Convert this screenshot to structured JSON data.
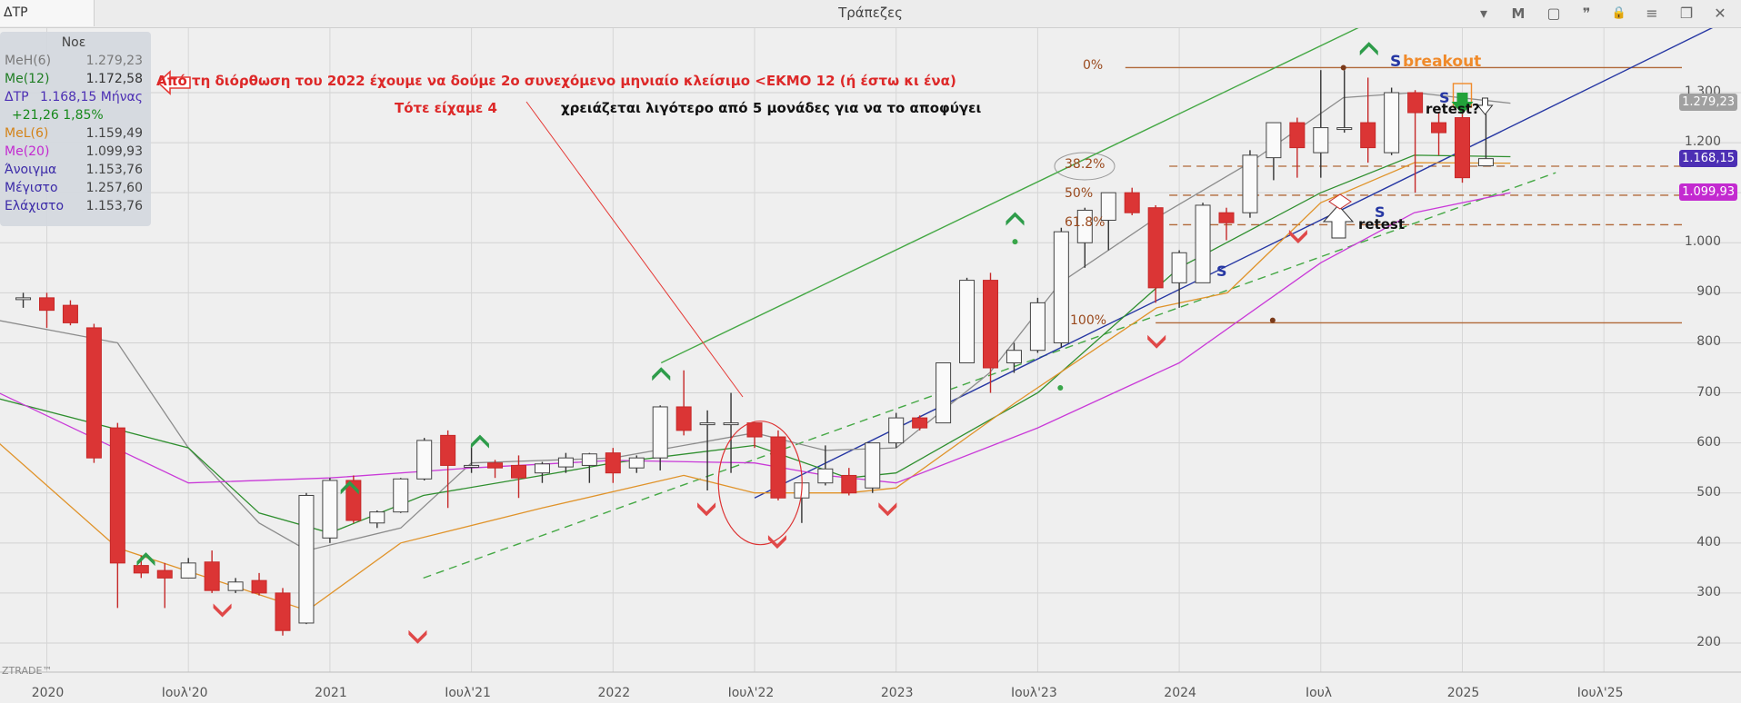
{
  "window": {
    "symbol": "ΔΤΡ",
    "title": "Τράπεζες",
    "buttons": [
      "▾",
      "M",
      "▢",
      "❞",
      "🔒",
      "≡",
      "❐",
      "✕"
    ]
  },
  "info_panel": {
    "title": "Νοε",
    "rows": [
      {
        "label": "MeH(6)",
        "value": "1.279,23",
        "color": "#7a7a7a"
      },
      {
        "label": "Me(12)",
        "value": "1.172,58",
        "color": "#1e7d22"
      },
      {
        "label": "ΔΤΡ",
        "value": "1.168,15 Μήνας",
        "color": "#4c2fb4"
      },
      {
        "label": "+21,26 1,85%",
        "value": "",
        "color": "#17891b"
      },
      {
        "label": "MeL(6)",
        "value": "1.159,49",
        "color": "#d48318"
      },
      {
        "label": "Me(20)",
        "value": "1.099,93",
        "color": "#c32ad0"
      },
      {
        "label": "Άνοιγμα",
        "value": "1.153,76",
        "color": "#3b2aa8"
      },
      {
        "label": "Μέγιστο",
        "value": "1.257,60",
        "color": "#3b2aa8"
      },
      {
        "label": "Ελάχιστο",
        "value": "1.153,76",
        "color": "#3b2aa8"
      }
    ]
  },
  "annotations": {
    "line1": "Από τη διόρθωση του 2022 έχουμε να δούμε 2ο συνεχόμενο μηνιαίο κλείσιμο <ΕΚΜΟ  12 (ή έστω κι ένα)",
    "line2": "Τότε είχαμε 4",
    "line3": "χρειάζεται λιγότερο από 5 μονάδες για να το αποφύγει",
    "s": "S",
    "breakout": "breakout",
    "retest1": "retest?",
    "retest2": "retest"
  },
  "fib_levels": [
    {
      "label": "0%",
      "value": 1350
    },
    {
      "label": "38.2%",
      "value": 1153
    },
    {
      "label": "50%",
      "value": 1095
    },
    {
      "label": "61.8%",
      "value": 1036
    },
    {
      "label": "100%",
      "value": 840
    }
  ],
  "price_tags": [
    {
      "text": "1.279,23",
      "value": 1279.23,
      "color": "#a0a0a0"
    },
    {
      "text": "1.168,15",
      "value": 1168.15,
      "color": "#4c2fb4"
    },
    {
      "text": "1.099,93",
      "value": 1099.93,
      "color": "#c32ad0"
    }
  ],
  "watermark": "ZTRADE™",
  "chart_data": {
    "type": "candlestick",
    "title": "",
    "xlabel": "",
    "ylabel": "",
    "y_ticks": [
      200,
      300,
      400,
      500,
      600,
      700,
      800,
      900,
      1000,
      1100,
      1200,
      1300
    ],
    "y_tick_labels": [
      "200",
      "300",
      "400",
      "500",
      "600",
      "700",
      "800",
      "900",
      "1.000",
      "1.100",
      "1.200",
      "1.300"
    ],
    "x_ticks": [
      "2020",
      "Ιουλ'20",
      "2021",
      "Ιουλ'21",
      "2022",
      "Ιουλ'22",
      "2023",
      "Ιουλ'23",
      "2024",
      "Ιουλ",
      "2025",
      "Ιουλ'25"
    ],
    "x_tick_months": [
      "2020-01",
      "2020-07",
      "2021-01",
      "2021-07",
      "2022-01",
      "2022-07",
      "2023-01",
      "2023-07",
      "2024-01",
      "2024-07",
      "2025-01",
      "2025-07"
    ],
    "ylim": [
      165,
      1410
    ],
    "grid": true,
    "candles": [
      {
        "month": "2019-12",
        "open": 890,
        "high": 900,
        "low": 870,
        "close": 890
      },
      {
        "month": "2020-01",
        "open": 890,
        "high": 900,
        "low": 830,
        "close": 865
      },
      {
        "month": "2020-02",
        "open": 875,
        "high": 885,
        "low": 835,
        "close": 840
      },
      {
        "month": "2020-03",
        "open": 830,
        "high": 838,
        "low": 560,
        "close": 570
      },
      {
        "month": "2020-04",
        "open": 630,
        "high": 640,
        "low": 270,
        "close": 360
      },
      {
        "month": "2020-05",
        "open": 355,
        "high": 375,
        "low": 330,
        "close": 340
      },
      {
        "month": "2020-06",
        "open": 345,
        "high": 360,
        "low": 270,
        "close": 330
      },
      {
        "month": "2020-07",
        "open": 330,
        "high": 370,
        "low": 330,
        "close": 360
      },
      {
        "month": "2020-08",
        "open": 362,
        "high": 385,
        "low": 300,
        "close": 305
      },
      {
        "month": "2020-09",
        "open": 305,
        "high": 330,
        "low": 300,
        "close": 322
      },
      {
        "month": "2020-10",
        "open": 325,
        "high": 340,
        "low": 295,
        "close": 300
      },
      {
        "month": "2020-11",
        "open": 300,
        "high": 310,
        "low": 215,
        "close": 225
      },
      {
        "month": "2020-12",
        "open": 240,
        "high": 500,
        "low": 238,
        "close": 495
      },
      {
        "month": "2021-01",
        "open": 410,
        "high": 530,
        "low": 400,
        "close": 525
      },
      {
        "month": "2021-02",
        "open": 525,
        "high": 535,
        "low": 440,
        "close": 445
      },
      {
        "month": "2021-03",
        "open": 440,
        "high": 465,
        "low": 430,
        "close": 462
      },
      {
        "month": "2021-04",
        "open": 462,
        "high": 530,
        "low": 460,
        "close": 528
      },
      {
        "month": "2021-05",
        "open": 528,
        "high": 610,
        "low": 525,
        "close": 605
      },
      {
        "month": "2021-06",
        "open": 615,
        "high": 625,
        "low": 470,
        "close": 555
      },
      {
        "month": "2021-07",
        "open": 553,
        "high": 595,
        "low": 540,
        "close": 555
      },
      {
        "month": "2021-08",
        "open": 560,
        "high": 566,
        "low": 530,
        "close": 550
      },
      {
        "month": "2021-09",
        "open": 555,
        "high": 575,
        "low": 490,
        "close": 530
      },
      {
        "month": "2021-10",
        "open": 540,
        "high": 562,
        "low": 520,
        "close": 558
      },
      {
        "month": "2021-11",
        "open": 552,
        "high": 580,
        "low": 540,
        "close": 570
      },
      {
        "month": "2021-12",
        "open": 555,
        "high": 580,
        "low": 520,
        "close": 578
      },
      {
        "month": "2022-01",
        "open": 580,
        "high": 590,
        "low": 520,
        "close": 540
      },
      {
        "month": "2022-02",
        "open": 550,
        "high": 575,
        "low": 540,
        "close": 570
      },
      {
        "month": "2022-03",
        "open": 570,
        "high": 675,
        "low": 545,
        "close": 672
      },
      {
        "month": "2022-04",
        "open": 672,
        "high": 745,
        "low": 615,
        "close": 625
      },
      {
        "month": "2022-05",
        "open": 640,
        "high": 665,
        "low": 505,
        "close": 640
      },
      {
        "month": "2022-06",
        "open": 640,
        "high": 700,
        "low": 540,
        "close": 640
      },
      {
        "month": "2022-07",
        "open": 640,
        "high": 640,
        "low": 590,
        "close": 612
      },
      {
        "month": "2022-08",
        "open": 612,
        "high": 625,
        "low": 485,
        "close": 490
      },
      {
        "month": "2022-09",
        "open": 490,
        "high": 520,
        "low": 440,
        "close": 520
      },
      {
        "month": "2022-10",
        "open": 520,
        "high": 595,
        "low": 515,
        "close": 548
      },
      {
        "month": "2022-11",
        "open": 535,
        "high": 550,
        "low": 495,
        "close": 500
      },
      {
        "month": "2022-12",
        "open": 510,
        "high": 600,
        "low": 500,
        "close": 600
      },
      {
        "month": "2023-01",
        "open": 600,
        "high": 660,
        "low": 590,
        "close": 650
      },
      {
        "month": "2023-02",
        "open": 650,
        "high": 655,
        "low": 625,
        "close": 630
      },
      {
        "month": "2023-03",
        "open": 640,
        "high": 760,
        "low": 640,
        "close": 760
      },
      {
        "month": "2023-04",
        "open": 760,
        "high": 930,
        "low": 760,
        "close": 925
      },
      {
        "month": "2023-05",
        "open": 925,
        "high": 940,
        "low": 700,
        "close": 750
      },
      {
        "month": "2023-06",
        "open": 760,
        "high": 800,
        "low": 740,
        "close": 785
      },
      {
        "month": "2023-07",
        "open": 785,
        "high": 890,
        "low": 780,
        "close": 880
      },
      {
        "month": "2023-08",
        "open": 800,
        "high": 1030,
        "low": 790,
        "close": 1022
      },
      {
        "month": "2023-09",
        "open": 1000,
        "high": 1070,
        "low": 950,
        "close": 1065
      },
      {
        "month": "2023-10",
        "open": 1045,
        "high": 1100,
        "low": 985,
        "close": 1100
      },
      {
        "month": "2023-11",
        "open": 1100,
        "high": 1110,
        "low": 1055,
        "close": 1060
      },
      {
        "month": "2023-12",
        "open": 1070,
        "high": 1075,
        "low": 880,
        "close": 910
      },
      {
        "month": "2024-01",
        "open": 920,
        "high": 985,
        "low": 870,
        "close": 980
      },
      {
        "month": "2024-02",
        "open": 920,
        "high": 1080,
        "low": 920,
        "close": 1075
      },
      {
        "month": "2024-03",
        "open": 1060,
        "high": 1070,
        "low": 1005,
        "close": 1040
      },
      {
        "month": "2024-04",
        "open": 1060,
        "high": 1185,
        "low": 1050,
        "close": 1175
      },
      {
        "month": "2024-05",
        "open": 1170,
        "high": 1240,
        "low": 1125,
        "close": 1240
      },
      {
        "month": "2024-06",
        "open": 1240,
        "high": 1250,
        "low": 1130,
        "close": 1190
      },
      {
        "month": "2024-07",
        "open": 1180,
        "high": 1345,
        "low": 1130,
        "close": 1230
      },
      {
        "month": "2024-08",
        "open": 1230,
        "high": 1345,
        "low": 1220,
        "close": 1230
      },
      {
        "month": "2024-09",
        "open": 1240,
        "high": 1330,
        "low": 1160,
        "close": 1190
      },
      {
        "month": "2024-10",
        "open": 1180,
        "high": 1310,
        "low": 1175,
        "close": 1300
      },
      {
        "month": "2024-11",
        "open": 1300,
        "high": 1305,
        "low": 1100,
        "close": 1260
      },
      {
        "month": "2024-12",
        "open": 1240,
        "high": 1260,
        "low": 1175,
        "close": 1220
      },
      {
        "month": "2025-01",
        "open": 1250,
        "high": 1260,
        "low": 1120,
        "close": 1130
      },
      {
        "month": "2025-02",
        "open": 1153.76,
        "high": 1257.6,
        "low": 1153.76,
        "close": 1168.15
      }
    ],
    "series": [
      {
        "name": "MeH(6)",
        "color": "#8c8c8c",
        "values": [
          [
            2019.0,
            895
          ],
          [
            2019.5,
            880
          ],
          [
            2020.25,
            800
          ],
          [
            2020.5,
            590
          ],
          [
            2020.75,
            440
          ],
          [
            2020.92,
            385
          ],
          [
            2021.25,
            430
          ],
          [
            2021.5,
            560
          ],
          [
            2022.0,
            570
          ],
          [
            2022.5,
            620
          ],
          [
            2022.75,
            585
          ],
          [
            2023.0,
            590
          ],
          [
            2023.33,
            740
          ],
          [
            2023.58,
            920
          ],
          [
            2023.92,
            1050
          ],
          [
            2024.25,
            1160
          ],
          [
            2024.58,
            1290
          ],
          [
            2024.83,
            1300
          ],
          [
            2025.17,
            1279
          ]
        ]
      },
      {
        "name": "Me(12)",
        "color": "#2f8f2f",
        "values": [
          [
            2019.0,
            820
          ],
          [
            2019.25,
            805
          ],
          [
            2019.75,
            700
          ],
          [
            2020.5,
            590
          ],
          [
            2020.75,
            460
          ],
          [
            2021.0,
            420
          ],
          [
            2021.33,
            495
          ],
          [
            2021.75,
            535
          ],
          [
            2022.0,
            560
          ],
          [
            2022.5,
            595
          ],
          [
            2022.83,
            530
          ],
          [
            2023.0,
            540
          ],
          [
            2023.5,
            700
          ],
          [
            2024.0,
            950
          ],
          [
            2024.5,
            1100
          ],
          [
            2024.83,
            1175
          ],
          [
            2025.17,
            1172
          ]
        ]
      },
      {
        "name": "MeL(6)",
        "color": "#e0932a",
        "values": [
          [
            2019.0,
            750
          ],
          [
            2019.25,
            790
          ],
          [
            2019.75,
            640
          ],
          [
            2020.25,
            390
          ],
          [
            2020.92,
            265
          ],
          [
            2021.25,
            400
          ],
          [
            2021.75,
            470
          ],
          [
            2022.25,
            535
          ],
          [
            2022.5,
            500
          ],
          [
            2022.83,
            500
          ],
          [
            2023.0,
            510
          ],
          [
            2023.42,
            680
          ],
          [
            2023.92,
            870
          ],
          [
            2024.17,
            900
          ],
          [
            2024.5,
            1080
          ],
          [
            2024.83,
            1160
          ],
          [
            2025.17,
            1159
          ]
        ]
      },
      {
        "name": "Me(20)",
        "color": "#c93ad8",
        "values": [
          [
            2019.0,
            895
          ],
          [
            2019.33,
            880
          ],
          [
            2019.83,
            700
          ],
          [
            2020.5,
            520
          ],
          [
            2021.0,
            530
          ],
          [
            2021.5,
            550
          ],
          [
            2022.0,
            565
          ],
          [
            2022.5,
            560
          ],
          [
            2022.75,
            535
          ],
          [
            2023.0,
            520
          ],
          [
            2023.5,
            630
          ],
          [
            2024.0,
            760
          ],
          [
            2024.5,
            960
          ],
          [
            2024.83,
            1060
          ],
          [
            2025.17,
            1100
          ]
        ]
      }
    ],
    "trendlines": [
      {
        "from": [
          2022.17,
          760
        ],
        "to": [
          2024.67,
          1440
        ],
        "style": "solid",
        "color": "#45a845"
      },
      {
        "from": [
          2021.33,
          330
        ],
        "to": [
          2025.33,
          1140
        ],
        "style": "dashed",
        "color": "#45a845"
      },
      {
        "from": [
          2022.5,
          490
        ],
        "to": [
          2025.92,
          1440
        ],
        "style": "solid",
        "color": "#2637a3"
      }
    ]
  }
}
